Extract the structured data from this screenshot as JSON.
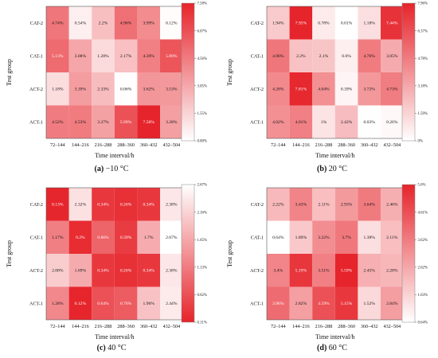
{
  "chart_data": [
    {
      "type": "heatmap",
      "caption_letter": "(a)",
      "caption_rest": " −10 °C",
      "xlabel": "Time interval/h",
      "ylabel": "Test group",
      "x": [
        "72–144",
        "144–216",
        "216–288",
        "288–360",
        "360–432",
        "432–504"
      ],
      "y": [
        "CAT-2",
        "CAT-1",
        "ACT-2",
        "ACT-1"
      ],
      "values": [
        [
          4.74,
          0.54,
          2.2,
          4.96,
          3.99,
          0.12
        ],
        [
          5.13,
          3.08,
          1.28,
          2.17,
          4.39,
          5.89
        ],
        [
          1.18,
          3.39,
          2.33,
          0.06,
          3.62,
          3.53
        ],
        [
          4.52,
          4.53,
          3.27,
          5.99,
          7.58,
          3.28
        ]
      ],
      "cell_labels": [
        [
          "4.74%",
          "0.54%",
          "2.2%",
          "4.96%",
          "3.99%",
          "0.12%"
        ],
        [
          "5.13%",
          "3.08%",
          "1.28%",
          "2.17%",
          "4.39%",
          "5.89%"
        ],
        [
          "1.18%",
          "3.39%",
          "2.33%",
          "0.06%",
          "3.62%",
          "3.53%"
        ],
        [
          "4.52%",
          "4.53%",
          "3.27%",
          "5.99%",
          "7.58%",
          "3.28%"
        ]
      ],
      "colorbar_range": [
        0.0,
        7.58
      ],
      "colorbar_ticks": [
        "7.58%",
        "6.07%",
        "4.56%",
        "3.05%",
        "1.55%",
        "0.00%"
      ],
      "colorbar_orientation": "high-top",
      "colors": [
        "#ffffff",
        "#e6242b"
      ]
    },
    {
      "type": "heatmap",
      "caption_letter": "(b)",
      "caption_rest": " 20 °C",
      "xlabel": "Time interval/h",
      "ylabel": "Test group",
      "x": [
        "72–144",
        "144–216",
        "216–288",
        "288–360",
        "360–432",
        "432–504"
      ],
      "y": [
        "CAT-2",
        "CAT-1",
        "ACT-2",
        "ACT-1"
      ],
      "values": [
        [
          1.94,
          7.95,
          0.78,
          0.01,
          1.18,
          7.44
        ],
        [
          4.96,
          2.2,
          2.1,
          0.6,
          4.76,
          3.05
        ],
        [
          4.28,
          7.81,
          4.04,
          0.39,
          3.72,
          4.73
        ],
        [
          4.02,
          4.61,
          1.0,
          2.42,
          0.03,
          0.26
        ]
      ],
      "cell_labels": [
        [
          "1.94%",
          "7.95%",
          "0.78%",
          "0.01%",
          "1.18%",
          "7.44%"
        ],
        [
          "4.96%",
          "2.2%",
          "2.1%",
          "0.6%",
          "4.76%",
          "3.05%"
        ],
        [
          "4.28%",
          "7.81%",
          "4.04%",
          "0.39%",
          "3.72%",
          "4.73%"
        ],
        [
          "4.02%",
          "4.61%",
          "1%",
          "2.42%",
          "0.03%",
          "0.26%"
        ]
      ],
      "colorbar_range": [
        0.0,
        7.96
      ],
      "colorbar_ticks": [
        "7.96%",
        "6.37%",
        "4.78%",
        "3.18%",
        "1.59%",
        "0%"
      ],
      "colorbar_orientation": "high-top",
      "colors": [
        "#ffffff",
        "#e6242b"
      ]
    },
    {
      "type": "heatmap",
      "caption_letter": "(c)",
      "caption_rest": " 40 °C",
      "xlabel": "Time interval/h",
      "ylabel": "Test group",
      "x": [
        "72–144",
        "144–216",
        "216–288",
        "288–360",
        "360–432",
        "432–504"
      ],
      "y": [
        "CAT-2",
        "CAT-1",
        "ACT-2",
        "ACT-1"
      ],
      "values": [
        [
          0.13,
          2.32,
          0.34,
          0.26,
          0.34,
          2.38
        ],
        [
          1.17,
          0.2,
          0.86,
          0.39,
          1.7,
          2.67
        ],
        [
          2.08,
          1.69,
          0.34,
          0.26,
          0.34,
          2.38
        ],
        [
          1.28,
          0.12,
          0.64,
          0.76,
          1.96,
          2.44
        ]
      ],
      "cell_labels": [
        [
          "0.13%",
          "2.32%",
          "0.34%",
          "0.26%",
          "0.34%",
          "2.38%"
        ],
        [
          "1.17%",
          "0.2%",
          "0.86%",
          "0.39%",
          "1.7%",
          "2.67%"
        ],
        [
          "2.08%",
          "1.69%",
          "0.34%",
          "0.26%",
          "0.34%",
          "2.38%"
        ],
        [
          "1.28%",
          "0.12%",
          "0.64%",
          "0.76%",
          "1.96%",
          "2.44%"
        ]
      ],
      "colorbar_range": [
        0.11,
        2.67
      ],
      "colorbar_ticks": [
        "2.67%",
        "2.16%",
        "1.65%",
        "1.13%",
        "0.62%",
        "0.11%"
      ],
      "colorbar_orientation": "high-top",
      "colors": [
        "#e6242b",
        "#ffffff"
      ]
    },
    {
      "type": "heatmap",
      "caption_letter": "(d)",
      "caption_rest": " 60 °C",
      "xlabel": "Time interval/h",
      "ylabel": "Test group",
      "x": [
        "72–144",
        "144–216",
        "216–288",
        "288–360",
        "360–432",
        "432–504"
      ],
      "y": [
        "CAT-2",
        "CAT-1",
        "ACT-2",
        "ACT-1"
      ],
      "values": [
        [
          2.22,
          3.43,
          2.11,
          2.93,
          3.64,
          2.46
        ],
        [
          0.64,
          1.89,
          3.22,
          3.7,
          1.38,
          2.11
        ],
        [
          3.4,
          5.19,
          3.51,
          5.59,
          2.45,
          2.28
        ],
        [
          3.96,
          2.82,
          4.59,
          5.15,
          1.52,
          2.84
        ]
      ],
      "cell_labels": [
        [
          "2.22%",
          "3.43%",
          "2.11%",
          "2.93%",
          "3.64%",
          "2.46%"
        ],
        [
          "0.64%",
          "1.89%",
          "3.22%",
          "3.7%",
          "1.38%",
          "2.11%"
        ],
        [
          "3.4%",
          "5.19%",
          "3.51%",
          "5.59%",
          "2.45%",
          "2.28%"
        ],
        [
          "3.96%",
          "2.82%",
          "4.59%",
          "5.15%",
          "1.52%",
          "2.84%"
        ]
      ],
      "colorbar_range": [
        0.64,
        5.6
      ],
      "colorbar_ticks": [
        "5.6%",
        "4.61%",
        "3.62%",
        "2.62%",
        "1.63%",
        "0.64%"
      ],
      "colorbar_orientation": "high-top",
      "colors": [
        "#ffffff",
        "#e6242b"
      ]
    }
  ]
}
